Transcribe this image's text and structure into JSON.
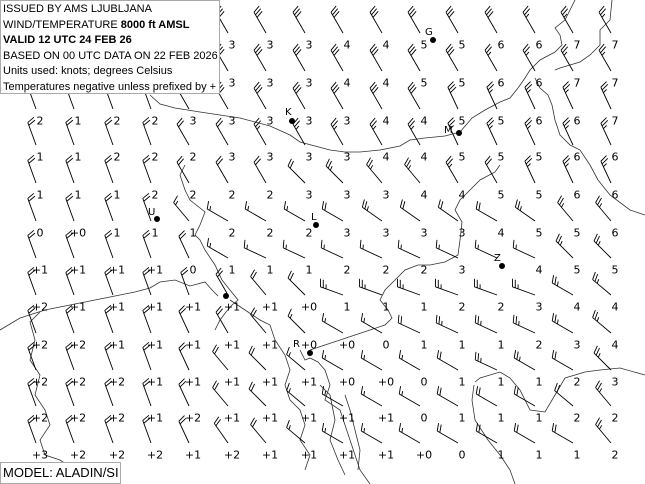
{
  "header": {
    "issued_by": "ISSUED BY AMS LJUBLJANA",
    "level_prefix": "WIND/TEMPERATURE ",
    "level": "8000 ft AMSL",
    "valid": "VALID 12 UTC 24 FEB 26",
    "based_on": "BASED ON 00 UTC DATA ON 22 FEB 2026",
    "units": "Units used: knots; degrees Celsius",
    "note": "Temperatures negative unless prefixed by +"
  },
  "model": "MODEL: ALADIN/SI",
  "cities": [
    {
      "label": "G"
    },
    {
      "label": "K"
    },
    {
      "label": "M"
    },
    {
      "label": "U"
    },
    {
      "label": "L"
    },
    {
      "label": "Z"
    },
    {
      "label": "R"
    }
  ],
  "temperatures": [
    [
      "",
      "",
      "",
      "",
      "",
      "3",
      "3",
      "3",
      "4",
      "4",
      "5",
      "5",
      "6",
      "6",
      "7",
      "7"
    ],
    [
      "",
      "",
      "",
      "",
      "",
      "3",
      "3",
      "3",
      "4",
      "4",
      "5",
      "5",
      "6",
      "6",
      "7",
      "7"
    ],
    [
      "2",
      "1",
      "2",
      "2",
      "3",
      "3",
      "3",
      "3",
      "3",
      "4",
      "4",
      "5",
      "5",
      "6",
      "6",
      "7"
    ],
    [
      "1",
      "1",
      "2",
      "2",
      "2",
      "3",
      "3",
      "3",
      "3",
      "4",
      "4",
      "5",
      "5",
      "5",
      "6",
      "6"
    ],
    [
      "1",
      "1",
      "1",
      "2",
      "2",
      "2",
      "2",
      "3",
      "3",
      "3",
      "4",
      "4",
      "5",
      "5",
      "6",
      "6"
    ],
    [
      "0",
      "+0",
      "1",
      "1",
      "1",
      "2",
      "2",
      "2",
      "3",
      "3",
      "3",
      "3",
      "4",
      "5",
      "5",
      "6"
    ],
    [
      "+1",
      "+1",
      "+1",
      "+1",
      "0",
      "1",
      "1",
      "1",
      "2",
      "2",
      "2",
      "3",
      "",
      "4",
      "5",
      "5"
    ],
    [
      "+2",
      "+1",
      "+1",
      "+1",
      "+1",
      "+1",
      "+1",
      "+0",
      "1",
      "1",
      "1",
      "2",
      "2",
      "3",
      "4",
      "4"
    ],
    [
      "+2",
      "+2",
      "+1",
      "+1",
      "+1",
      "+1",
      "+1",
      "+0",
      "+0",
      "0",
      "1",
      "1",
      "1",
      "2",
      "3",
      "4"
    ],
    [
      "+2",
      "+2",
      "+2",
      "+1",
      "+1",
      "+1",
      "+1",
      "+1",
      "+0",
      "+0",
      "0",
      "1",
      "1",
      "1",
      "2",
      "3"
    ],
    [
      "+2",
      "+2",
      "+2",
      "+1",
      "+2",
      "+1",
      "+1",
      "+1",
      "+1",
      "+1",
      "0",
      "1",
      "1",
      "1",
      "2",
      "2"
    ],
    [
      "+3",
      "+2",
      "+2",
      "+2",
      "+1",
      "+2",
      "+1",
      "+1",
      "+1",
      "+1",
      "+0",
      "0",
      "1",
      "1",
      "1",
      "2"
    ]
  ],
  "wind_dir_deg": [
    [
      330,
      330,
      330,
      330,
      330,
      330,
      330,
      330,
      330,
      330,
      330,
      330,
      330,
      330,
      330,
      330
    ],
    [
      330,
      330,
      330,
      330,
      330,
      330,
      330,
      330,
      330,
      330,
      330,
      330,
      330,
      330,
      330,
      330
    ],
    [
      340,
      340,
      340,
      340,
      330,
      330,
      330,
      330,
      330,
      330,
      330,
      335,
      335,
      335,
      335,
      335
    ],
    [
      340,
      340,
      340,
      340,
      330,
      330,
      330,
      330,
      330,
      330,
      330,
      335,
      335,
      335,
      335,
      335
    ],
    [
      340,
      340,
      340,
      340,
      330,
      330,
      330,
      315,
      315,
      320,
      320,
      330,
      330,
      335,
      335,
      335
    ],
    [
      340,
      340,
      340,
      340,
      320,
      300,
      300,
      300,
      300,
      305,
      305,
      305,
      300,
      305,
      320,
      320
    ],
    [
      340,
      340,
      340,
      340,
      335,
      300,
      295,
      295,
      295,
      295,
      295,
      295,
      295,
      295,
      315,
      315
    ],
    [
      340,
      340,
      340,
      340,
      340,
      330,
      320,
      315,
      290,
      290,
      290,
      290,
      290,
      290,
      300,
      310
    ],
    [
      340,
      340,
      340,
      340,
      335,
      330,
      320,
      315,
      300,
      300,
      295,
      295,
      295,
      295,
      300,
      310
    ],
    [
      340,
      340,
      340,
      340,
      335,
      320,
      315,
      310,
      300,
      300,
      300,
      300,
      295,
      300,
      300,
      315
    ],
    [
      340,
      340,
      340,
      340,
      335,
      320,
      315,
      310,
      300,
      300,
      300,
      300,
      300,
      300,
      310,
      320
    ],
    [
      340,
      340,
      340,
      340,
      335,
      325,
      320,
      310,
      300,
      300,
      300,
      300,
      300,
      300,
      300,
      320
    ]
  ],
  "wind_speed_kt": [
    [
      30,
      30,
      30,
      30,
      30,
      30,
      30,
      30,
      30,
      30,
      30,
      30,
      30,
      25,
      25,
      25
    ],
    [
      30,
      30,
      30,
      30,
      30,
      30,
      30,
      30,
      30,
      30,
      30,
      30,
      25,
      25,
      25,
      25
    ],
    [
      20,
      20,
      20,
      20,
      20,
      30,
      30,
      30,
      30,
      30,
      30,
      30,
      25,
      25,
      25,
      25
    ],
    [
      20,
      20,
      20,
      20,
      20,
      20,
      25,
      25,
      25,
      25,
      25,
      25,
      25,
      25,
      25,
      25
    ],
    [
      20,
      20,
      20,
      20,
      20,
      20,
      20,
      20,
      25,
      25,
      25,
      25,
      20,
      25,
      25,
      25
    ],
    [
      20,
      20,
      20,
      20,
      15,
      15,
      15,
      15,
      20,
      25,
      20,
      20,
      20,
      25,
      25,
      25
    ],
    [
      20,
      20,
      20,
      20,
      20,
      15,
      15,
      15,
      15,
      15,
      15,
      15,
      15,
      15,
      25,
      25
    ],
    [
      20,
      20,
      20,
      20,
      20,
      20,
      20,
      20,
      25,
      25,
      25,
      25,
      25,
      25,
      25,
      25
    ],
    [
      20,
      20,
      20,
      20,
      20,
      20,
      20,
      15,
      15,
      15,
      20,
      25,
      25,
      25,
      25,
      25
    ],
    [
      20,
      20,
      20,
      20,
      20,
      20,
      20,
      15,
      15,
      15,
      15,
      20,
      25,
      25,
      20,
      25
    ],
    [
      20,
      20,
      20,
      20,
      20,
      20,
      20,
      15,
      15,
      15,
      15,
      20,
      20,
      20,
      20,
      25
    ],
    [
      20,
      20,
      20,
      20,
      20,
      20,
      20,
      15,
      15,
      15,
      15,
      20,
      20,
      20,
      20,
      25
    ]
  ]
}
